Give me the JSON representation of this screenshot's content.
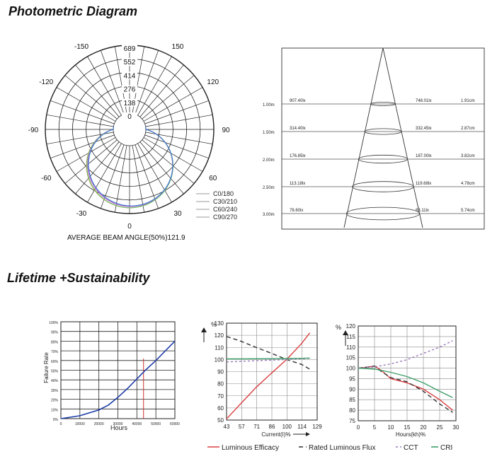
{
  "sections": {
    "photometric_title": "Photometric Diagram",
    "lifetime_title": "Lifetime +Sustainability"
  },
  "chart_data": [
    {
      "type": "polar",
      "id": "polar-candela",
      "r_ticks": [
        "689",
        "552",
        "414",
        "276",
        "138",
        "0"
      ],
      "angle_labels": [
        "-150",
        "150",
        "-120",
        "120",
        "-90",
        "90",
        "-60",
        "60",
        "-30",
        "30",
        "0"
      ],
      "legend": [
        "C0/180",
        "C30/210",
        "C60/240",
        "C90/270"
      ],
      "series_colors": [
        "#c8a24a",
        "#6fbf6f",
        "#d060d0",
        "#3b7fd0"
      ],
      "footer": "AVERAGE BEAM ANGLE(50%)121.9"
    },
    {
      "type": "illuminance_cone",
      "id": "beam-cone",
      "rows": [
        {
          "distance": "1.00m",
          "center_lux": "907.40lx",
          "avg_lux": "748.01lx",
          "diameter": "1.91cm"
        },
        {
          "distance": "1.50m",
          "center_lux": "314.40lx",
          "avg_lux": "332.45lx",
          "diameter": "2.87cm"
        },
        {
          "distance": "2.00m",
          "center_lux": "176.85lx",
          "avg_lux": "187.00lx",
          "diameter": "3.82cm"
        },
        {
          "distance": "2.50m",
          "center_lux": "113.18lx",
          "avg_lux": "119.68lx",
          "diameter": "4.78cm"
        },
        {
          "distance": "3.00m",
          "center_lux": "78.60lx",
          "avg_lux": "83.11lx",
          "diameter": "5.74cm"
        }
      ]
    },
    {
      "type": "line",
      "id": "failure-rate",
      "xlabel": "Hours",
      "ylabel": "Failure Rate",
      "x_ticks": [
        "0",
        "10000",
        "20000",
        "30000",
        "40000",
        "50000",
        "60000"
      ],
      "y_ticks": [
        "0%",
        "10%",
        "20%",
        "30%",
        "40%",
        "50%",
        "60%",
        "70%",
        "80%",
        "90%",
        "100%"
      ],
      "xlim": [
        0,
        60000
      ],
      "ylim": [
        0,
        100
      ],
      "series": [
        {
          "color": "#1f3fa8",
          "x": [
            0,
            10000,
            20000,
            25000,
            30000,
            35000,
            40000,
            45000,
            50000,
            55000,
            60000
          ],
          "y": [
            0,
            3,
            9,
            14,
            22,
            31,
            41,
            51,
            60,
            70,
            80
          ]
        }
      ],
      "markers": [
        {
          "x": 43500,
          "color": "#d03030"
        }
      ]
    },
    {
      "type": "line",
      "id": "current-chart",
      "xlabel": "Current(I)%",
      "ylabel": "%",
      "x_ticks": [
        "43",
        "57",
        "71",
        "86",
        "100",
        "114",
        "129"
      ],
      "y_ticks": [
        "50",
        "60",
        "70",
        "80",
        "90",
        "100",
        "110",
        "120",
        "130"
      ],
      "xlim": [
        43,
        129
      ],
      "ylim": [
        50,
        130
      ],
      "series": [
        {
          "name": "Luminous Efficacy",
          "color": "#d94040",
          "dash": "",
          "x": [
            43,
            57,
            71,
            86,
            100,
            114,
            122
          ],
          "y": [
            51,
            64,
            77,
            89,
            100,
            113,
            122
          ]
        },
        {
          "name": "Rated Luminous Flux",
          "color": "#333333",
          "dash": "6,4",
          "x": [
            43,
            57,
            71,
            86,
            100,
            114,
            122
          ],
          "y": [
            119,
            115,
            110,
            105,
            100,
            96,
            92
          ]
        },
        {
          "name": "CCT",
          "color": "#9a7ab8",
          "dash": "3,3",
          "x": [
            43,
            57,
            71,
            86,
            100,
            114,
            122
          ],
          "y": [
            98,
            98.5,
            99,
            99.5,
            100,
            100.5,
            101
          ]
        },
        {
          "name": "CRI",
          "color": "#3fa06a",
          "dash": "",
          "x": [
            43,
            57,
            71,
            86,
            100,
            114,
            122
          ],
          "y": [
            100.5,
            100.5,
            100.6,
            100.7,
            100.8,
            101,
            101.2
          ]
        }
      ]
    },
    {
      "type": "line",
      "id": "hours-chart",
      "xlabel": "Hours(kh)%",
      "ylabel": "%",
      "x_ticks": [
        "0",
        "5",
        "10",
        "15",
        "20",
        "25",
        "30"
      ],
      "y_ticks": [
        "75",
        "80",
        "85",
        "90",
        "95",
        "100",
        "105",
        "110",
        "115",
        "120"
      ],
      "xlim": [
        0,
        30
      ],
      "ylim": [
        75,
        120
      ],
      "series": [
        {
          "name": "Luminous Efficacy",
          "color": "#d94040",
          "dash": "",
          "x": [
            0,
            3,
            5,
            7,
            10,
            15,
            20,
            25,
            29
          ],
          "y": [
            100,
            100.5,
            101,
            99,
            95,
            93,
            90,
            85,
            80
          ]
        },
        {
          "name": "Rated Luminous Flux",
          "color": "#333333",
          "dash": "6,4",
          "x": [
            0,
            3,
            5,
            7,
            10,
            15,
            20,
            25,
            29
          ],
          "y": [
            100,
            100.5,
            101,
            98.5,
            95.5,
            93.5,
            89,
            83,
            79
          ]
        },
        {
          "name": "CCT",
          "color": "#9a7ab8",
          "dash": "3,3",
          "x": [
            0,
            5,
            10,
            15,
            20,
            25,
            29
          ],
          "y": [
            100,
            100.6,
            102,
            104,
            107,
            110,
            113
          ]
        },
        {
          "name": "CRI",
          "color": "#3fa06a",
          "dash": "",
          "x": [
            0,
            5,
            10,
            15,
            20,
            25,
            29
          ],
          "y": [
            100,
            99.5,
            98,
            96,
            93,
            89,
            86
          ]
        }
      ]
    }
  ],
  "legend_bottom": [
    "Luminous Efficacy",
    "Rated Luminous Flux",
    "CCT",
    "CRI"
  ]
}
